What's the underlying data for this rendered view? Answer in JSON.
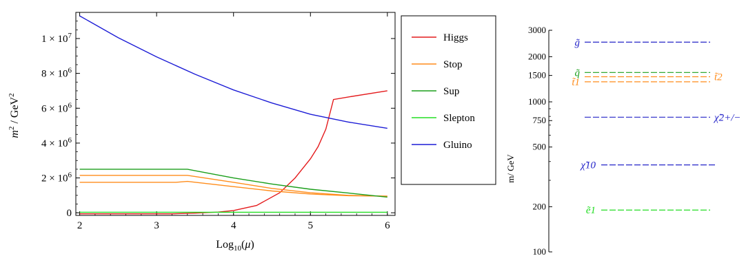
{
  "chart_data": [
    {
      "type": "line",
      "xlabel": "Log10(μ)",
      "ylabel": "m2 / GeV2",
      "xlim": [
        1.95,
        6.1
      ],
      "ylim": [
        -150000,
        11500000
      ],
      "x_ticks": [
        2,
        3,
        4,
        5,
        6
      ],
      "x_tick_labels": [
        "2",
        "3",
        "4",
        "5",
        "6"
      ],
      "y_ticks": [
        0,
        2000000,
        4000000,
        6000000,
        8000000,
        10000000
      ],
      "y_tick_labels": [
        "0",
        "2 × 10^6",
        "4 × 10^6",
        "6 × 10^6",
        "8 × 10^6",
        "1 × 10^7"
      ],
      "grid": false,
      "legend_position": "right",
      "series": [
        {
          "name": "Higgs",
          "color": "#e41a1c",
          "x": [
            2,
            3,
            3.2,
            3.5,
            3.8,
            4,
            4.3,
            4.6,
            4.8,
            5.0,
            5.1,
            5.2,
            5.3,
            5.5,
            6
          ],
          "y": [
            -60000,
            -60000,
            -60000,
            -20000,
            40000,
            130000,
            420000,
            1150000,
            2000000,
            3100000,
            3800000,
            4800000,
            6500000,
            6650000,
            7000000
          ]
        },
        {
          "name": "Stop",
          "color": "#ff8c1a",
          "x": [
            2,
            3.4,
            4,
            4.5,
            5,
            5.5,
            6
          ],
          "y": [
            2150000,
            2150000,
            1750000,
            1400000,
            1150000,
            1000000,
            950000
          ]
        },
        {
          "name": "Stop",
          "color": "#ff8c1a",
          "x": [
            2,
            3.25,
            3.4,
            4,
            4.5,
            5,
            5.5,
            6
          ],
          "y": [
            1750000,
            1750000,
            1800000,
            1500000,
            1250000,
            1080000,
            980000,
            950000
          ]
        },
        {
          "name": "Sup",
          "color": "#1a9e1a",
          "x": [
            2,
            3.4,
            4,
            4.5,
            5,
            5.5,
            6
          ],
          "y": [
            2500000,
            2500000,
            2000000,
            1650000,
            1350000,
            1130000,
            900000
          ]
        },
        {
          "name": "Slepton",
          "color": "#22dd22",
          "x": [
            2,
            6
          ],
          "y": [
            30000,
            30000
          ]
        },
        {
          "name": "Gluino",
          "color": "#1c1cd6",
          "x": [
            2,
            2.5,
            3,
            3.5,
            4,
            4.5,
            5,
            5.5,
            6
          ],
          "y": [
            11300000,
            10050000,
            8950000,
            7950000,
            7050000,
            6300000,
            5650000,
            5200000,
            4850000
          ]
        }
      ],
      "legend": [
        {
          "label": "Higgs",
          "color": "#e41a1c"
        },
        {
          "label": "Stop",
          "color": "#ff8c1a"
        },
        {
          "label": "Sup",
          "color": "#1a9e1a"
        },
        {
          "label": "Slepton",
          "color": "#22dd22"
        },
        {
          "label": "Gluino",
          "color": "#1c1cd6"
        }
      ]
    },
    {
      "type": "line",
      "subtype": "mass-spectrum",
      "ylabel": "m/ GeV",
      "y_scale": "log",
      "ylim": [
        100,
        3000
      ],
      "y_ticks": [
        100,
        200,
        500,
        750,
        1000,
        1500,
        2000,
        3000
      ],
      "y_tick_labels": [
        "100",
        "200",
        "500",
        "750",
        "1000",
        "1500",
        "2000",
        "3000"
      ],
      "levels": [
        {
          "label": "g̃",
          "label_side": "left",
          "color": "#2323c8",
          "mass": 2500
        },
        {
          "label": "q̃",
          "label_side": "left",
          "color": "#1a9e1a",
          "mass": 1570
        },
        {
          "label": "t̃2",
          "label_side": "right",
          "color": "#ff8c1a",
          "mass": 1470
        },
        {
          "label": "t̃1",
          "label_side": "left",
          "color": "#ff8c1a",
          "mass": 1360
        },
        {
          "label": "χ̃2+/−",
          "label_side": "right",
          "color": "#2323c8",
          "mass": 790
        },
        {
          "label": "χ̃10",
          "label_side": "left",
          "color": "#2323c8",
          "mass": 380
        },
        {
          "label": "ẽ1",
          "label_side": "left",
          "color": "#22dd22",
          "mass": 190
        }
      ]
    }
  ]
}
